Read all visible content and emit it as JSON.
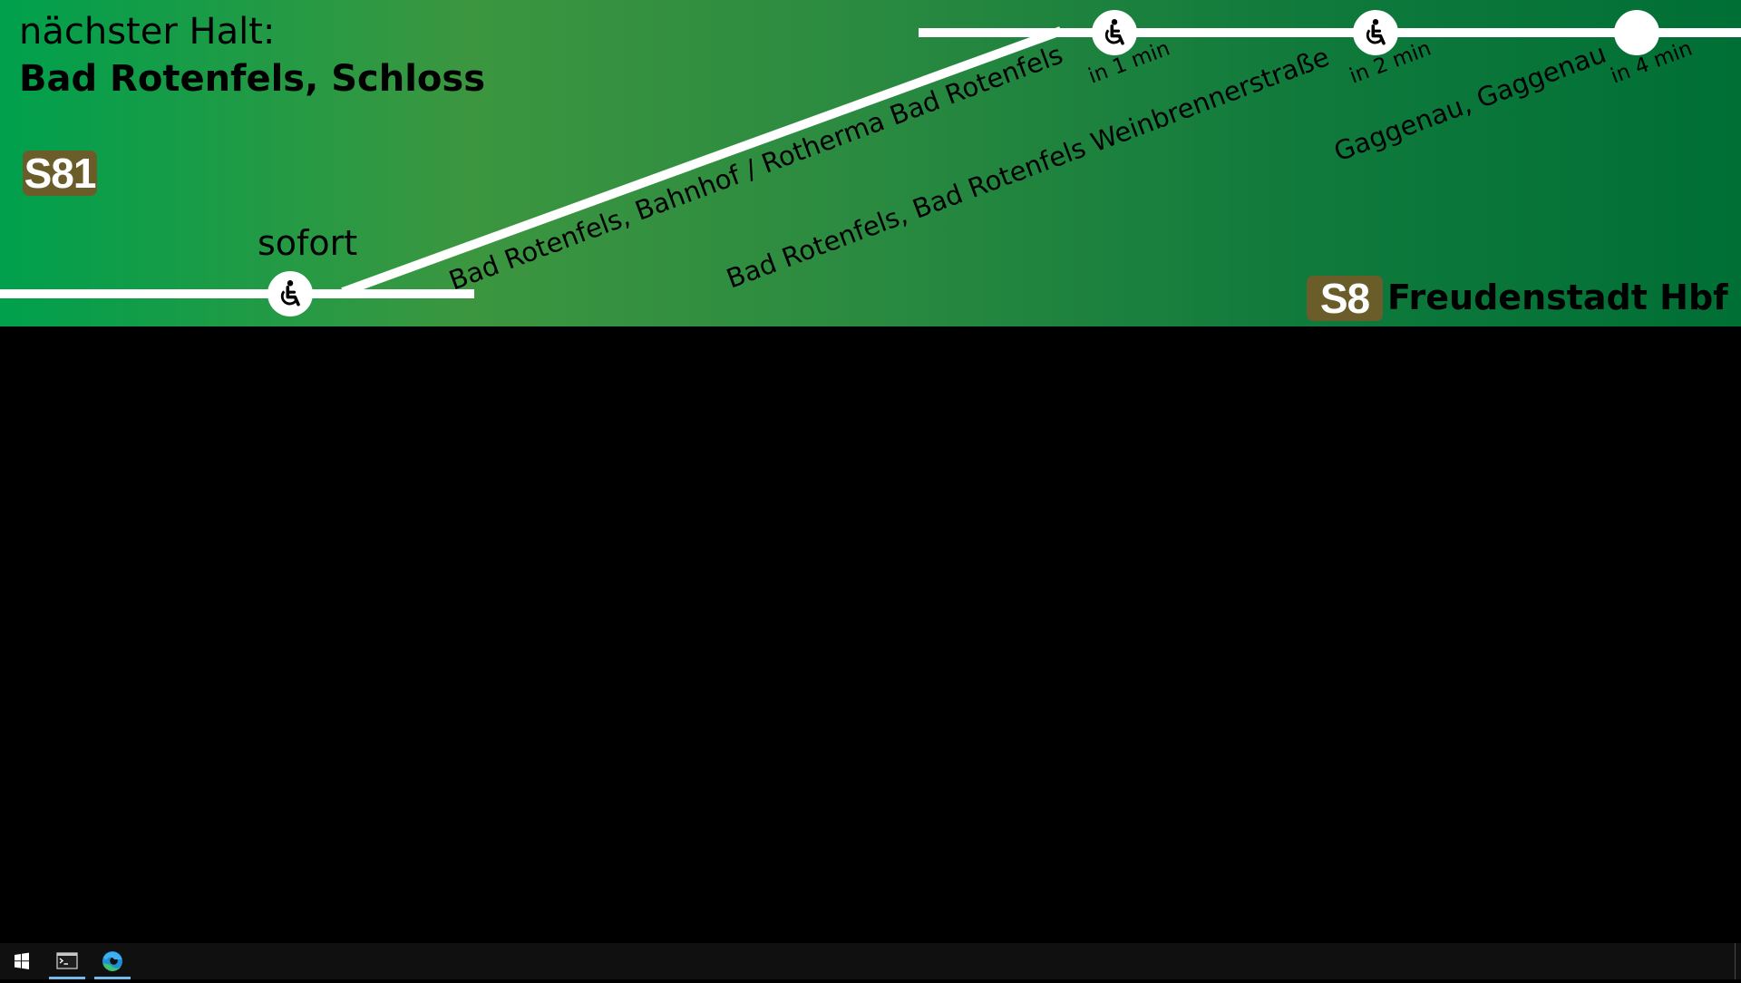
{
  "header": {
    "next_stop_label": "nächster Halt:",
    "next_stop_name": "Bad Rotenfels, Schloss"
  },
  "current_line": {
    "label": "S81"
  },
  "current_stop": {
    "time": "sofort",
    "accessible": true
  },
  "upcoming_stops": [
    {
      "name": "Bad Rotenfels, Bahnhof / Rotherma Bad Rotenfels",
      "time": "in 1 min",
      "accessible": true
    },
    {
      "name": "Bad Rotenfels, Bad Rotenfels Weinbrennerstraße",
      "time": "in 2 min",
      "accessible": true
    },
    {
      "name": "Gaggenau, Gaggenau",
      "time": "in 4 min",
      "accessible": false
    }
  ],
  "destination": {
    "line": "S8",
    "name": "Freudenstadt Hbf"
  },
  "colors": {
    "background_start": "#00a04c",
    "background_end": "#006f35",
    "line_badge": "#6b5d2a",
    "route_line": "#ffffff"
  },
  "taskbar": {
    "start_icon": "windows-logo-icon",
    "apps": [
      {
        "name": "terminal",
        "icon": "terminal-icon",
        "active": true
      },
      {
        "name": "edge",
        "icon": "edge-browser-icon",
        "active": true
      }
    ]
  }
}
